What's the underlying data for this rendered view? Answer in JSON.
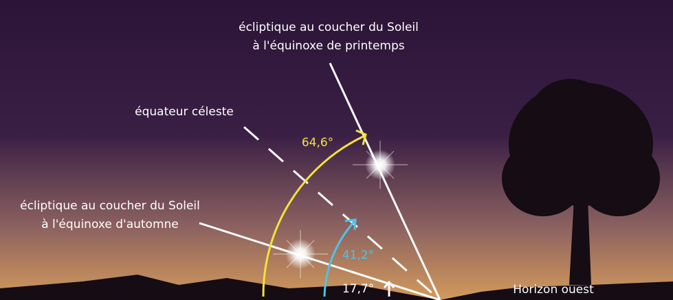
{
  "labels": {
    "spring_line1": "écliptique au coucher du Soleil",
    "spring_line2": "à l'équinoxe de printemps",
    "equator": "équateur céleste",
    "autumn_line1": "écliptique au coucher du Soleil",
    "autumn_line2": "à l'équinoxe d'automne",
    "angle_spring": "64,6°",
    "angle_equator": "41,2°",
    "angle_autumn": "17,7°",
    "horizon": "Horizon ouest"
  }
}
